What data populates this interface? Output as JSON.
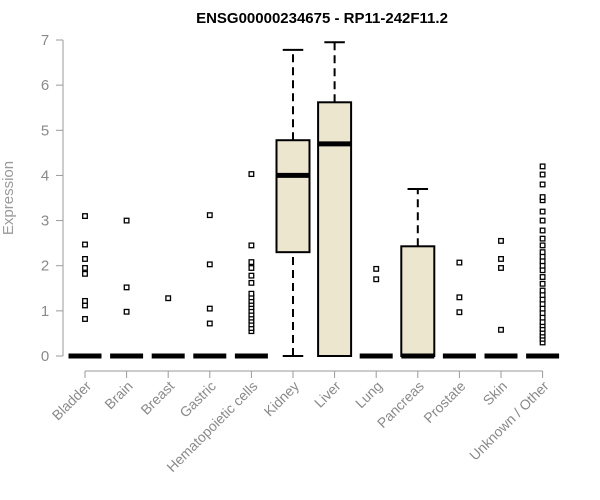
{
  "chart_data": {
    "type": "box",
    "title": "ENSG00000234675 - RP11-242F11.2",
    "ylabel": "Expression",
    "ylim": [
      0,
      7
    ],
    "yticks": [
      "0",
      "1",
      "2",
      "3",
      "4",
      "5",
      "6",
      "7"
    ],
    "box_fill": "#ede6cf",
    "categories": [
      "Bladder",
      "Brain",
      "Breast",
      "Gastric",
      "Hematopoietic cells",
      "Kidney",
      "Liver",
      "Lung",
      "Pancreas",
      "Prostate",
      "Skin",
      "Unknown / Other"
    ],
    "boxes": [
      {
        "category": "Bladder",
        "min": 0,
        "q1": 0,
        "median": 0,
        "q3": 0,
        "max": 0,
        "outliers": [
          0.82,
          1.12,
          1.22,
          1.82,
          1.95,
          2.15,
          2.47,
          3.1
        ]
      },
      {
        "category": "Brain",
        "min": 0,
        "q1": 0,
        "median": 0,
        "q3": 0,
        "max": 0,
        "outliers": [
          0.98,
          1.52,
          3.0
        ]
      },
      {
        "category": "Breast",
        "min": 0,
        "q1": 0,
        "median": 0,
        "q3": 0,
        "max": 0,
        "outliers": [
          1.28
        ]
      },
      {
        "category": "Gastric",
        "min": 0,
        "q1": 0,
        "median": 0,
        "q3": 0,
        "max": 0,
        "outliers": [
          0.72,
          1.05,
          2.03,
          3.12
        ]
      },
      {
        "category": "Hematopoietic cells",
        "min": 0,
        "q1": 0,
        "median": 0,
        "q3": 0,
        "max": 0,
        "outliers": [
          0.55,
          0.62,
          0.7,
          0.78,
          0.85,
          0.92,
          1.0,
          1.08,
          1.15,
          1.22,
          1.3,
          1.38,
          1.62,
          1.78,
          1.95,
          2.08,
          2.45,
          4.03
        ]
      },
      {
        "category": "Kidney",
        "min": 0,
        "q1": 2.3,
        "median": 4.0,
        "q3": 4.78,
        "max": 6.78,
        "outliers": []
      },
      {
        "category": "Liver",
        "min": 0,
        "q1": 0,
        "median": 4.7,
        "q3": 5.62,
        "max": 6.95,
        "outliers": []
      },
      {
        "category": "Lung",
        "min": 0,
        "q1": 0,
        "median": 0,
        "q3": 0,
        "max": 0,
        "outliers": [
          1.7,
          1.93
        ]
      },
      {
        "category": "Pancreas",
        "min": 0,
        "q1": 0,
        "median": 0,
        "q3": 2.43,
        "max": 3.7,
        "outliers": []
      },
      {
        "category": "Prostate",
        "min": 0,
        "q1": 0,
        "median": 0,
        "q3": 0,
        "max": 0,
        "outliers": [
          0.97,
          1.3,
          2.07
        ]
      },
      {
        "category": "Skin",
        "min": 0,
        "q1": 0,
        "median": 0,
        "q3": 0,
        "max": 0,
        "outliers": [
          0.58,
          1.95,
          2.15,
          2.55
        ]
      },
      {
        "category": "Unknown / Other",
        "min": 0,
        "q1": 0,
        "median": 0,
        "q3": 0,
        "max": 0,
        "outliers": [
          0.3,
          0.38,
          0.45,
          0.52,
          0.6,
          0.68,
          0.75,
          0.85,
          0.95,
          1.05,
          1.15,
          1.25,
          1.35,
          1.45,
          1.6,
          1.75,
          1.9,
          2.0,
          2.1,
          2.2,
          2.3,
          2.45,
          2.6,
          2.78,
          3.0,
          3.2,
          3.45,
          3.52,
          3.8,
          4.02,
          4.2
        ]
      }
    ]
  }
}
